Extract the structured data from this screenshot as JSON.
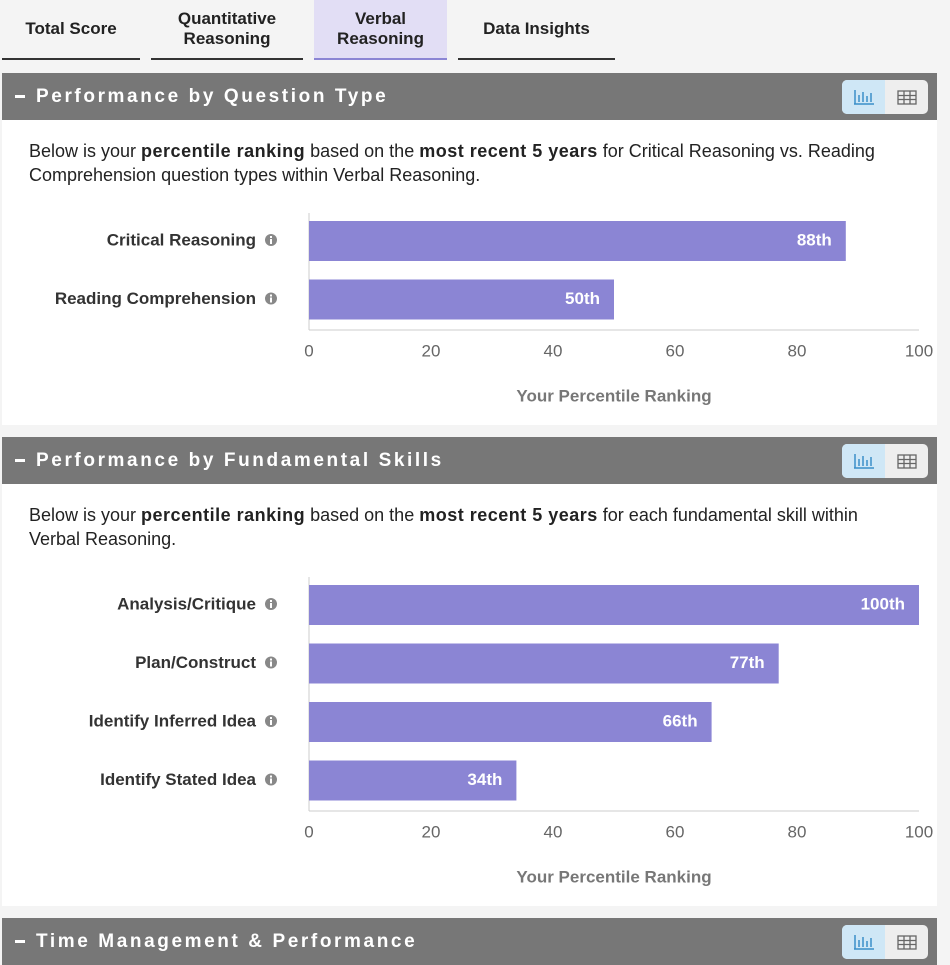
{
  "tabs": [
    "Total Score",
    "Quantitative Reasoning",
    "Verbal Reasoning",
    "Data Insights"
  ],
  "sections": [
    {
      "title": "Performance by Question Type",
      "description": [
        "Below is your ",
        "percentile ranking",
        " based on the ",
        "most recent 5 years",
        " for Critical Reasoning vs. Reading Comprehension question types within Verbal Reasoning."
      ],
      "chart_data": {
        "type": "bar",
        "orientation": "horizontal",
        "color": "#8b85d4",
        "categories": [
          "Critical Reasoning",
          "Reading Comprehension"
        ],
        "values": [
          88,
          50
        ],
        "value_labels": [
          "88th",
          "50th"
        ],
        "xlim": [
          0,
          100
        ],
        "xticks": [
          0,
          20,
          40,
          60,
          80,
          100
        ],
        "xlabel": "Your Percentile Ranking"
      }
    },
    {
      "title": "Performance by Fundamental Skills",
      "description": [
        "Below is your ",
        "percentile ranking",
        " based on the ",
        "most recent 5 years",
        " for each fundamental skill within Verbal Reasoning."
      ],
      "chart_data": {
        "type": "bar",
        "orientation": "horizontal",
        "color": "#8b85d4",
        "categories": [
          "Analysis/Critique",
          "Plan/Construct",
          "Identify Inferred Idea",
          "Identify Stated Idea"
        ],
        "values": [
          100,
          77,
          66,
          34
        ],
        "value_labels": [
          "100th",
          "77th",
          "66th",
          "34th"
        ],
        "xlim": [
          0,
          100
        ],
        "xticks": [
          0,
          20,
          40,
          60,
          80,
          100
        ],
        "xlabel": "Your Percentile Ranking"
      }
    },
    {
      "title": "Time Management & Performance"
    }
  ]
}
